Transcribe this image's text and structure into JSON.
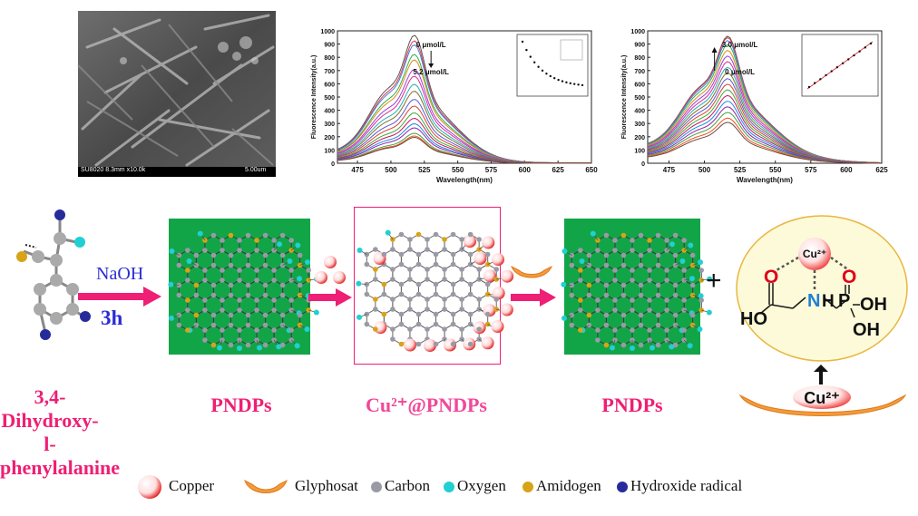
{
  "sem": {
    "caption": "SU8020 8.3mm x10.0k",
    "scale": "5.00um"
  },
  "chart_data": [
    {
      "type": "line",
      "xlabel": "Wavelength(nm)",
      "ylabel": "Fluorescence Intensity(a.u.)",
      "xlim": [
        460,
        650
      ],
      "ylim": [
        0,
        1000
      ],
      "x_ticks": [
        475,
        500,
        525,
        550,
        575,
        600,
        625,
        650
      ],
      "y_ticks": [
        0,
        100,
        200,
        300,
        400,
        500,
        600,
        700,
        800,
        900,
        1000
      ],
      "peak_x": 518,
      "peak_values": [
        940,
        900,
        870,
        800,
        760,
        690,
        640,
        580,
        530,
        470,
        420,
        370,
        330,
        290,
        260,
        220,
        200,
        190
      ],
      "annotation_top": "0 μmol/L",
      "annotation_bottom": "5.2 μmol/L"
    },
    {
      "type": "line",
      "xlabel": "Wavelength(nm)",
      "ylabel": "Fluorescence Intensity(a.u.)",
      "xlim": [
        460,
        625
      ],
      "ylim": [
        0,
        1000
      ],
      "x_ticks": [
        475,
        500,
        525,
        550,
        575,
        600,
        625
      ],
      "y_ticks": [
        0,
        100,
        200,
        300,
        400,
        500,
        600,
        700,
        800,
        900,
        1000
      ],
      "peak_x": 517,
      "peak_values": [
        900,
        890,
        870,
        840,
        800,
        760,
        720,
        680,
        640,
        600,
        560,
        520,
        480,
        440,
        400,
        360,
        320,
        290
      ],
      "annotation_top": "3.0 μmol/L",
      "annotation_bottom": "0 μmol/L"
    }
  ],
  "labels": {
    "naoh": "NaOH",
    "time": "3h",
    "precursor_line1": "3,4-Dihydroxy-",
    "precursor_line2": "l-phenylalanine",
    "pndps1": "PNDPs",
    "cu_pndps": "Cu²⁺@PNDPs",
    "pndps2": "PNDPs",
    "plus": "+",
    "cu_ion": "Cu²⁺",
    "cu_ion_bottom": "Cu²⁺"
  },
  "glyphosate": {
    "o1": "O",
    "o2": "O",
    "n": "N",
    "h_n": "H",
    "p": "P",
    "ho": "HO",
    "oh1": "OH",
    "oh2": "OH"
  },
  "legend": [
    "Copper",
    "Glyphosat",
    "Carbon",
    "Oxygen",
    "Amidogen",
    "Hydroxide radical"
  ],
  "colors": {
    "accent": "#ee1f74",
    "blue_text": "#2b2bd6",
    "green_panel": "#12a548",
    "carbon": "#9a9aa6",
    "oxygen": "#22cfd2",
    "amidogen": "#d9a317",
    "hydroxide": "#262b9c",
    "copper": "#e83030",
    "glyphosate": "#f39a3c"
  }
}
